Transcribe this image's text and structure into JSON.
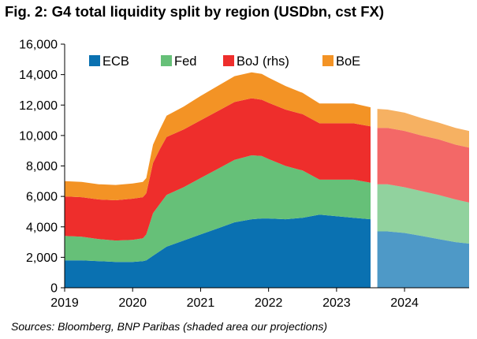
{
  "title": "Fig. 2: G4 total liquidity split by region (USDbn, cst FX)",
  "source": "Sources: Bloomberg, BNP Paribas (shaded area our projections)",
  "chart_data": {
    "type": "area",
    "stacked": true,
    "x": [
      2019.0,
      2019.25,
      2019.5,
      2019.75,
      2020.0,
      2020.15,
      2020.2,
      2020.3,
      2020.4,
      2020.5,
      2020.75,
      2021.0,
      2021.25,
      2021.5,
      2021.75,
      2021.9,
      2022.0,
      2022.25,
      2022.5,
      2022.75,
      2023.0,
      2023.25,
      2023.5,
      2023.6,
      2023.75,
      2024.0,
      2024.25,
      2024.5,
      2024.75,
      2024.95
    ],
    "series": [
      {
        "name": "ECB",
        "color": "#0a71b1",
        "values": [
          1800,
          1800,
          1750,
          1700,
          1700,
          1750,
          1800,
          2100,
          2400,
          2700,
          3100,
          3500,
          3900,
          4300,
          4500,
          4550,
          4550,
          4500,
          4600,
          4800,
          4700,
          4600,
          4500,
          3700,
          3700,
          3600,
          3400,
          3200,
          3000,
          2900
        ]
      },
      {
        "name": "Fed",
        "color": "#66c078",
        "values": [
          1600,
          1550,
          1450,
          1400,
          1450,
          1500,
          1700,
          2800,
          3100,
          3400,
          3500,
          3700,
          3900,
          4100,
          4200,
          4100,
          3900,
          3500,
          3100,
          2300,
          2400,
          2500,
          2400,
          3100,
          3100,
          3000,
          2950,
          2900,
          2800,
          2700
        ]
      },
      {
        "name": "BoJ (rhs)",
        "color": "#ee2e2c",
        "values": [
          2600,
          2600,
          2600,
          2650,
          2700,
          2700,
          2700,
          3300,
          3600,
          3800,
          3800,
          3800,
          3800,
          3800,
          3750,
          3700,
          3700,
          3700,
          3700,
          3700,
          3700,
          3700,
          3700,
          3700,
          3700,
          3700,
          3650,
          3650,
          3600,
          3600
        ]
      },
      {
        "name": "BoE",
        "color": "#f39325",
        "values": [
          1000,
          1000,
          1000,
          1000,
          1000,
          1000,
          1000,
          1200,
          1300,
          1400,
          1500,
          1600,
          1650,
          1700,
          1700,
          1700,
          1650,
          1550,
          1400,
          1300,
          1300,
          1300,
          1250,
          1250,
          1200,
          1200,
          1150,
          1100,
          1100,
          1100
        ]
      }
    ],
    "projection_start": 2023.6,
    "x_ticks": [
      "2019",
      "2020",
      "2021",
      "2022",
      "2023",
      "2024"
    ],
    "x_tick_values": [
      2019,
      2020,
      2021,
      2022,
      2023,
      2024
    ],
    "y_ticks": [
      "0",
      "2,000",
      "4,000",
      "6,000",
      "8,000",
      "10,000",
      "12,000",
      "14,000",
      "16,000"
    ],
    "y_tick_values": [
      0,
      2000,
      4000,
      6000,
      8000,
      10000,
      12000,
      14000,
      16000
    ],
    "ylim": [
      0,
      16000
    ],
    "xlim": [
      2019,
      2024.95
    ],
    "legend": "top-left",
    "grid": false
  }
}
